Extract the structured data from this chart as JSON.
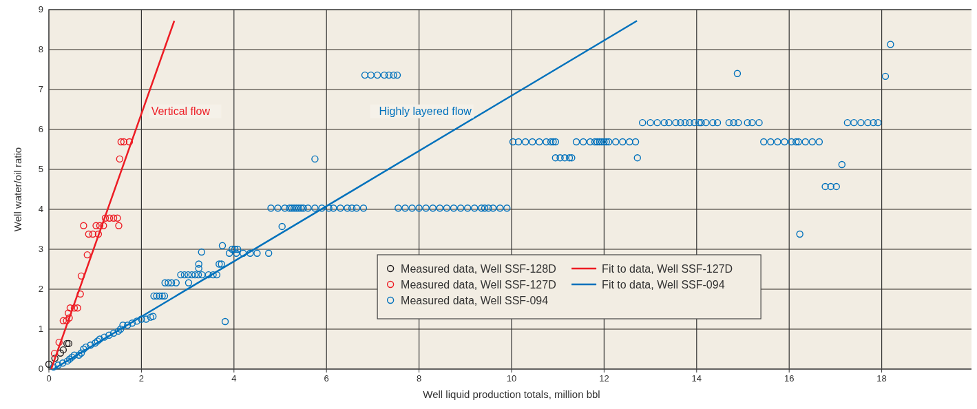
{
  "chart_data": {
    "type": "scatter",
    "xlabel": "Well liquid production totals, million bbl",
    "ylabel": "Well water/oil ratio",
    "xlim": [
      0,
      20
    ],
    "xticks": [
      0,
      2,
      4,
      6,
      8,
      10,
      12,
      14,
      16,
      18
    ],
    "ylim": [
      0,
      9
    ],
    "yticks": [
      0,
      1,
      2,
      3,
      4,
      5,
      6,
      7,
      8,
      9
    ],
    "grid": true,
    "legend": "bottom",
    "annotations": [
      "Vertical flow",
      "Highly layered flow"
    ],
    "series": [
      {
        "name": "Measured data, Well SSF-128D",
        "color": "#231f20",
        "marker": "circle",
        "x": [
          0,
          0.13,
          0.25,
          0.31,
          0.39,
          0.43
        ],
        "values": [
          0.12,
          0.27,
          0.4,
          0.48,
          0.64,
          0.64
        ]
      },
      {
        "name": "Measured data, Well SSF-127D",
        "color": "#ed1c24",
        "marker": "circle",
        "x": [
          0.12,
          0.22,
          0.31,
          0.38,
          0.42,
          0.44,
          0.46,
          0.55,
          0.62,
          0.68,
          0.7,
          0.83,
          0.75,
          0.86,
          0.95,
          1.07,
          1.02,
          1.1,
          1.18,
          1.22,
          1.31,
          1.4,
          1.48,
          1.51,
          1.53,
          1.56,
          1.62,
          1.74
        ],
        "values": [
          0.39,
          0.67,
          1.21,
          1.21,
          1.4,
          1.28,
          1.53,
          1.53,
          1.53,
          1.88,
          2.33,
          2.86,
          3.59,
          3.38,
          3.38,
          3.38,
          3.59,
          3.59,
          3.59,
          3.78,
          3.78,
          3.78,
          3.78,
          3.59,
          5.26,
          5.69,
          5.69,
          5.69
        ]
      },
      {
        "name": "Measured data, Well SSF-094",
        "color": "#0071bc",
        "marker": "circle",
        "x": [
          0.1,
          0.2,
          0.3,
          0.4,
          0.45,
          0.5,
          0.55,
          0.65,
          0.7,
          0.75,
          0.8,
          0.9,
          1.0,
          1.05,
          1.1,
          1.2,
          1.3,
          1.4,
          1.5,
          1.55,
          1.6,
          1.7,
          1.8,
          1.9,
          2.0,
          2.1,
          2.2,
          2.25,
          2.27,
          2.33,
          2.39,
          2.45,
          2.5,
          2.51,
          2.58,
          2.65,
          2.75,
          3.02,
          2.85,
          2.93,
          3.01,
          3.09,
          3.16,
          3.23,
          3.31,
          3.45,
          3.55,
          3.63,
          3.24,
          3.24,
          3.68,
          3.73,
          3.3,
          3.75,
          3.9,
          4.05,
          4.2,
          4.35,
          4.5,
          4.75,
          3.96,
          4.02,
          4.08,
          3.81,
          4.8,
          4.95,
          5.1,
          5.2,
          5.25,
          5.3,
          5.35,
          5.4,
          5.45,
          5.5,
          5.6,
          5.75,
          5.9,
          6.05,
          6.15,
          6.3,
          6.45,
          6.55,
          6.65,
          6.8,
          7.55,
          7.7,
          7.85,
          8.0,
          8.15,
          8.3,
          8.45,
          8.6,
          8.75,
          8.9,
          9.05,
          9.2,
          9.35,
          9.42,
          9.5,
          9.6,
          9.75,
          9.9,
          5.75,
          5.04,
          6.83,
          6.96,
          7.1,
          7.25,
          7.35,
          7.45,
          7.53,
          10.03,
          10.15,
          10.3,
          10.45,
          10.6,
          10.75,
          10.85,
          10.9,
          10.95,
          11.4,
          11.55,
          11.7,
          11.8,
          11.85,
          11.9,
          11.95,
          12.0,
          12.05,
          12.1,
          12.25,
          12.4,
          12.55,
          12.68,
          10.95,
          11.05,
          11.15,
          11.25,
          11.3,
          12.72,
          12.83,
          13.0,
          13.15,
          13.3,
          13.4,
          13.55,
          13.65,
          13.75,
          13.85,
          13.95,
          14.05,
          14.1,
          14.2,
          14.35,
          14.45,
          14.7,
          14.8,
          14.9,
          15.1,
          15.2,
          15.35,
          15.45,
          15.6,
          15.75,
          15.9,
          16.05,
          16.15,
          16.2,
          16.35,
          16.5,
          16.65,
          18.19,
          18.08,
          14.88,
          17.26,
          17.4,
          17.55,
          17.7,
          17.82,
          17.92,
          17.14,
          16.78,
          16.9,
          17.02,
          16.23
        ],
        "values": [
          0.05,
          0.1,
          0.15,
          0.2,
          0.25,
          0.3,
          0.35,
          0.35,
          0.4,
          0.5,
          0.55,
          0.6,
          0.65,
          0.7,
          0.75,
          0.8,
          0.85,
          0.9,
          0.95,
          1.0,
          1.1,
          1.1,
          1.15,
          1.2,
          1.25,
          1.25,
          1.3,
          1.32,
          1.83,
          1.83,
          1.83,
          1.83,
          1.83,
          2.16,
          2.16,
          2.16,
          2.16,
          2.16,
          2.36,
          2.36,
          2.36,
          2.36,
          2.36,
          2.36,
          2.36,
          2.36,
          2.36,
          2.36,
          2.52,
          2.63,
          2.63,
          2.63,
          2.93,
          3.09,
          2.9,
          2.9,
          2.9,
          2.9,
          2.9,
          2.9,
          3.0,
          3.0,
          3.0,
          1.19,
          4.03,
          4.03,
          4.03,
          4.03,
          4.03,
          4.03,
          4.03,
          4.03,
          4.03,
          4.03,
          4.03,
          4.03,
          4.03,
          4.03,
          4.03,
          4.03,
          4.03,
          4.03,
          4.03,
          4.03,
          4.03,
          4.03,
          4.03,
          4.03,
          4.03,
          4.03,
          4.03,
          4.03,
          4.03,
          4.03,
          4.03,
          4.03,
          4.03,
          4.03,
          4.03,
          4.03,
          4.03,
          4.03,
          5.26,
          3.57,
          7.36,
          7.36,
          7.36,
          7.36,
          7.36,
          7.36,
          7.36,
          5.69,
          5.69,
          5.69,
          5.69,
          5.69,
          5.69,
          5.69,
          5.69,
          5.69,
          5.69,
          5.69,
          5.69,
          5.69,
          5.69,
          5.69,
          5.69,
          5.69,
          5.69,
          5.69,
          5.69,
          5.69,
          5.69,
          5.69,
          5.29,
          5.29,
          5.29,
          5.29,
          5.29,
          5.29,
          6.17,
          6.17,
          6.17,
          6.17,
          6.17,
          6.17,
          6.17,
          6.17,
          6.17,
          6.17,
          6.17,
          6.17,
          6.17,
          6.17,
          6.17,
          6.17,
          6.17,
          6.17,
          6.17,
          6.17,
          6.17,
          5.69,
          5.69,
          5.69,
          5.69,
          5.69,
          5.69,
          5.69,
          5.69,
          5.69,
          5.69,
          8.13,
          7.33,
          7.4,
          6.17,
          6.17,
          6.17,
          6.17,
          6.17,
          6.17,
          5.12,
          4.57,
          4.57,
          4.57,
          3.38
        ]
      },
      {
        "type": "line",
        "name": "Fit to data, Well SSF-127D",
        "color": "#ed1c24",
        "marker": "none",
        "x": [
          0.05,
          2.71
        ],
        "values": [
          0,
          8.72
        ]
      },
      {
        "type": "line",
        "name": "Fit to data, Well SSF-094",
        "color": "#0071bc",
        "marker": "none",
        "x": [
          0.1,
          12.71
        ],
        "values": [
          0,
          8.72
        ]
      }
    ]
  }
}
